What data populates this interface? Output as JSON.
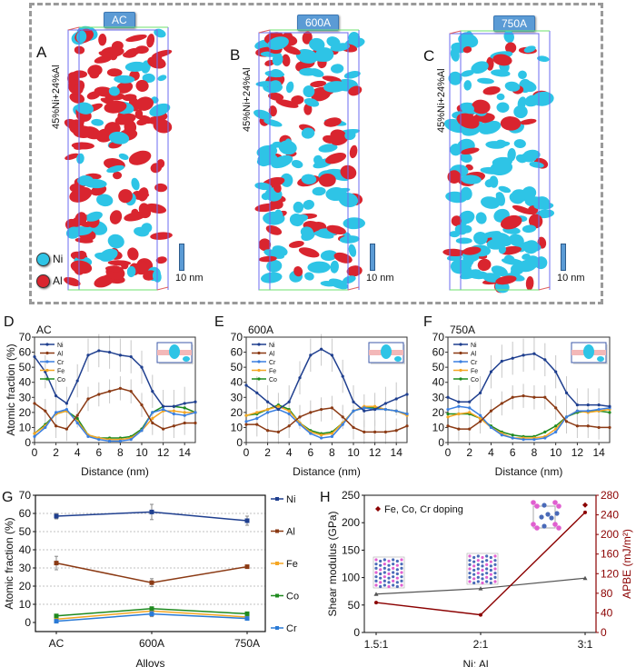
{
  "figure": {
    "apt_panels": [
      {
        "letter": "A",
        "tag": "AC",
        "composition": "45%Ni+24%Al",
        "scale": "10 nm",
        "dominant": "Al"
      },
      {
        "letter": "B",
        "tag": "600A",
        "composition": "45%Ni+24%Al",
        "scale": "10 nm",
        "dominant": "mixed"
      },
      {
        "letter": "C",
        "tag": "750A",
        "composition": "45%Ni+24%Al",
        "scale": "10 nm",
        "dominant": "Ni"
      }
    ],
    "apt_legend": [
      {
        "label": "Ni",
        "color": "#2ec4e6"
      },
      {
        "label": "Al",
        "color": "#d9252f"
      }
    ],
    "colors": {
      "Ni": "#1f3f8f",
      "Al": "#8b3a14",
      "Cr": "#3a7fe0",
      "Fe": "#f5a623",
      "Co": "#1e8a1e",
      "G_Cr": "#2a7ad6",
      "shear": "#555555",
      "apbe": "#8b0000"
    }
  },
  "chart_data": [
    {
      "type": "line",
      "panel": "D",
      "title": "AC",
      "xlabel": "Distance (nm)",
      "ylabel": "Atomic fraction (%)",
      "xlim": [
        0,
        15
      ],
      "ylim": [
        0,
        70
      ],
      "xticks": [
        "0",
        "2",
        "4",
        "6",
        "8",
        "10",
        "12",
        "14"
      ],
      "yticks": [
        "0",
        "10",
        "20",
        "30",
        "40",
        "50",
        "60",
        "70"
      ],
      "legend": "top-left",
      "x": [
        0,
        1,
        2,
        3,
        4,
        5,
        6,
        7,
        8,
        9,
        10,
        11,
        12,
        13,
        14,
        15
      ],
      "series": [
        {
          "name": "Ni",
          "values": [
            57,
            47,
            31,
            26,
            41,
            58,
            61,
            60,
            58,
            57,
            50,
            34,
            24,
            24,
            26,
            27
          ]
        },
        {
          "name": "Al",
          "values": [
            26,
            21,
            11,
            9,
            18,
            29,
            32,
            34,
            36,
            34,
            25,
            13,
            9,
            11,
            13,
            13
          ]
        },
        {
          "name": "Cr",
          "values": [
            4,
            10,
            20,
            22,
            13,
            4,
            2,
            1,
            1,
            2,
            8,
            20,
            22,
            19,
            18,
            20
          ]
        },
        {
          "name": "Fe",
          "values": [
            6,
            11,
            19,
            21,
            14,
            5,
            3,
            2,
            2,
            3,
            8,
            16,
            21,
            21,
            20,
            20
          ]
        },
        {
          "name": "Co",
          "values": [
            6,
            12,
            19,
            21,
            16,
            5,
            3,
            3,
            3,
            4,
            9,
            20,
            24,
            24,
            23,
            20
          ]
        }
      ]
    },
    {
      "type": "line",
      "panel": "E",
      "title": "600A",
      "xlabel": "Distance (nm)",
      "ylabel": "",
      "xlim": [
        0,
        15
      ],
      "ylim": [
        0,
        70
      ],
      "xticks": [
        "0",
        "2",
        "4",
        "6",
        "8",
        "10",
        "12",
        "14"
      ],
      "yticks": [
        "0",
        "10",
        "20",
        "30",
        "40",
        "50",
        "60",
        "70"
      ],
      "legend": "top-left",
      "x": [
        0,
        1,
        2,
        3,
        4,
        5,
        6,
        7,
        8,
        9,
        10,
        11,
        12,
        13,
        14,
        15
      ],
      "series": [
        {
          "name": "Ni",
          "values": [
            38,
            33,
            27,
            22,
            27,
            43,
            58,
            62,
            58,
            44,
            27,
            21,
            22,
            26,
            29,
            32
          ]
        },
        {
          "name": "Al",
          "values": [
            12,
            12,
            8,
            7,
            11,
            17,
            20,
            22,
            23,
            17,
            10,
            7,
            7,
            7,
            8,
            11
          ]
        },
        {
          "name": "Cr",
          "values": [
            14,
            16,
            20,
            22,
            19,
            12,
            6,
            3,
            4,
            12,
            21,
            23,
            22,
            22,
            21,
            19
          ]
        },
        {
          "name": "Fe",
          "values": [
            18,
            20,
            22,
            24,
            21,
            13,
            7,
            5,
            6,
            13,
            21,
            24,
            24,
            22,
            21,
            18
          ]
        },
        {
          "name": "Co",
          "values": [
            18,
            19,
            22,
            25,
            22,
            13,
            8,
            6,
            7,
            13,
            21,
            23,
            23,
            22,
            21,
            19
          ]
        }
      ]
    },
    {
      "type": "line",
      "panel": "F",
      "title": "750A",
      "xlabel": "Distance (nm)",
      "ylabel": "",
      "xlim": [
        0,
        15
      ],
      "ylim": [
        0,
        70
      ],
      "xticks": [
        "0",
        "2",
        "4",
        "6",
        "8",
        "10",
        "12",
        "14"
      ],
      "yticks": [
        "0",
        "10",
        "20",
        "30",
        "40",
        "50",
        "60",
        "70"
      ],
      "legend": "top-left",
      "x": [
        0,
        1,
        2,
        3,
        4,
        5,
        6,
        7,
        8,
        9,
        10,
        11,
        12,
        13,
        14,
        15
      ],
      "series": [
        {
          "name": "Ni",
          "values": [
            30,
            27,
            27,
            33,
            47,
            54,
            56,
            58,
            59,
            55,
            47,
            33,
            25,
            25,
            25,
            24
          ]
        },
        {
          "name": "Al",
          "values": [
            11,
            9,
            9,
            14,
            21,
            26,
            30,
            31,
            30,
            30,
            23,
            14,
            11,
            11,
            10,
            10
          ]
        },
        {
          "name": "Cr",
          "values": [
            22,
            24,
            23,
            18,
            10,
            5,
            3,
            2,
            2,
            3,
            7,
            17,
            21,
            21,
            22,
            23
          ]
        },
        {
          "name": "Fe",
          "values": [
            17,
            19,
            20,
            16,
            10,
            6,
            3,
            3,
            3,
            4,
            9,
            17,
            21,
            20,
            21,
            22
          ]
        },
        {
          "name": "Co",
          "values": [
            19,
            19,
            19,
            16,
            11,
            7,
            5,
            4,
            4,
            7,
            11,
            17,
            20,
            21,
            21,
            20
          ]
        }
      ]
    },
    {
      "type": "line",
      "panel": "G",
      "title": "",
      "xlabel": "Alloys",
      "ylabel": "Atomic fraction (%)",
      "ylim": [
        -5,
        70
      ],
      "categories": [
        "AC",
        "600A",
        "750A"
      ],
      "yticks": [
        "0",
        "10",
        "20",
        "30",
        "40",
        "50",
        "60",
        "70"
      ],
      "grid": true,
      "legend": "right",
      "series": [
        {
          "name": "Ni",
          "values": [
            58.5,
            60.8,
            56.0
          ],
          "err": [
            1.5,
            4.2,
            2.5
          ],
          "marker": "square"
        },
        {
          "name": "Al",
          "values": [
            32.7,
            21.9,
            30.7
          ],
          "err": [
            3.7,
            2.2,
            0.8
          ],
          "marker": "circle"
        },
        {
          "name": "Fe",
          "values": [
            1.8,
            6.3,
            3.0
          ],
          "err": [
            0.5,
            1.0,
            0.5
          ],
          "marker": "triangle-up"
        },
        {
          "name": "Co",
          "values": [
            3.6,
            7.6,
            4.8
          ],
          "err": [
            0.5,
            1.0,
            0.5
          ],
          "marker": "triangle-down"
        },
        {
          "name": "Cr",
          "values": [
            0.7,
            4.7,
            2.2
          ],
          "err": [
            0.5,
            1.5,
            0.8
          ],
          "marker": "diamond"
        }
      ]
    },
    {
      "type": "line",
      "panel": "H",
      "title": "",
      "xlabel": "Ni: Al",
      "ylabel": "Shear modulus (GPa)",
      "ylabel_right": "APBE (mJ/m²)",
      "categories": [
        "1.5:1",
        "2:1",
        "3:1"
      ],
      "ylim": [
        0,
        250
      ],
      "ylim_right": [
        0,
        280
      ],
      "yticks": [
        "0",
        "50",
        "100",
        "150",
        "200",
        "250"
      ],
      "yticks_right": [
        "0",
        "40",
        "80",
        "120",
        "160",
        "200",
        "240",
        "280"
      ],
      "legend": "top-left",
      "legend_label": "Fe, Co, Cr doping",
      "series": [
        {
          "name": "Shear modulus",
          "axis": "left",
          "values": [
            70,
            80,
            99
          ]
        },
        {
          "name": "APBE",
          "axis": "right",
          "values": [
            61,
            36,
            245
          ]
        },
        {
          "name": "Fe, Co, Cr doping",
          "axis": "right",
          "values": [
            null,
            null,
            260
          ],
          "marker_only": true
        }
      ]
    }
  ]
}
